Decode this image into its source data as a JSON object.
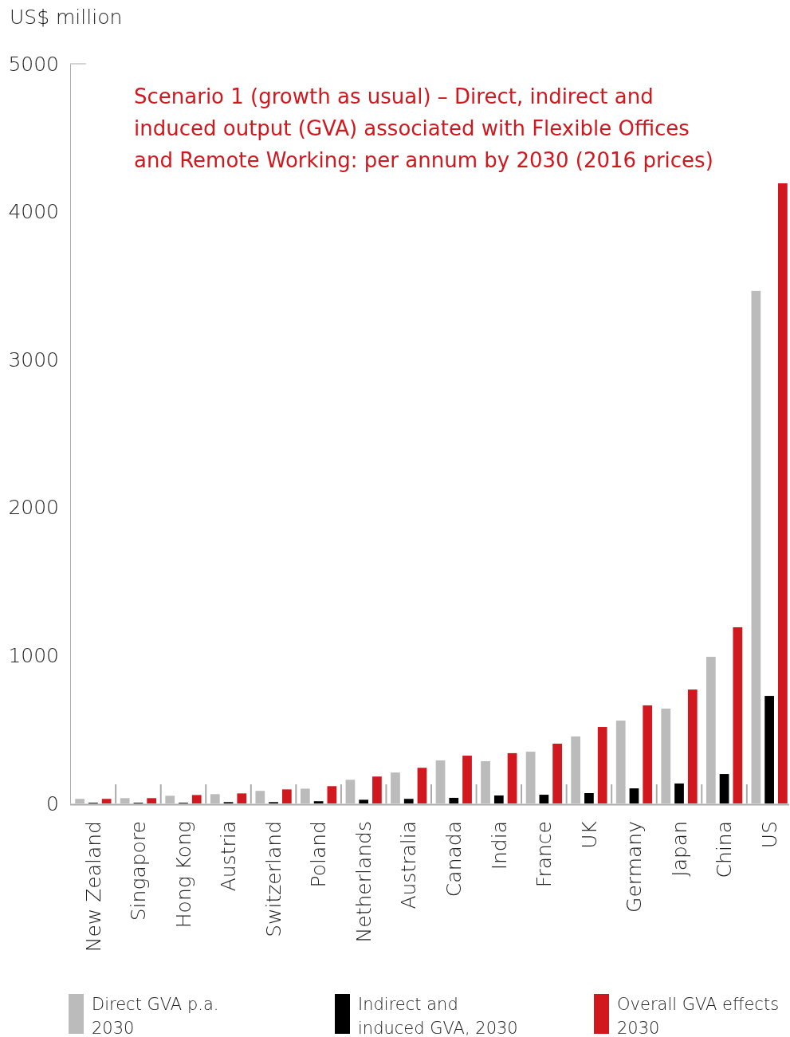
{
  "chart_data": {
    "type": "bar",
    "title": "Scenario 1 (growth as usual) – Direct, indirect and induced output (GVA) associated with Flexible Offices and Remote Working: per annum by 2030 (2016 prices)",
    "ylabel": "US$ million",
    "categories": [
      "New Zealand",
      "Singapore",
      "Hong Kong",
      "Austria",
      "Switzerland",
      "Poland",
      "Netherlands",
      "Australia",
      "Canada",
      "India",
      "France",
      "UK",
      "Germany",
      "Japan",
      "China",
      "US"
    ],
    "series": [
      {
        "name": "Direct GVA p.a. 2030",
        "color": "#bbbbbb",
        "values": [
          31,
          36,
          52,
          63,
          85,
          100,
          160,
          209,
          291,
          286,
          350,
          453,
          560,
          641,
          991,
          3465
        ]
      },
      {
        "name": "Indirect and induced GVA, 2030",
        "color": "#000000",
        "values": [
          5,
          5,
          5,
          9,
          9,
          15,
          25,
          31,
          38,
          54,
          59,
          70,
          102,
          135,
          199,
          727
        ]
      },
      {
        "name": "Overall GVA effects 2030",
        "color": "#d0181e",
        "values": [
          31,
          36,
          57,
          68,
          95,
          117,
          182,
          241,
          323,
          340,
          404,
          517,
          663,
          770,
          1191,
          4192
        ]
      }
    ],
    "ylim": [
      0,
      5000
    ],
    "yticks": [
      0,
      1000,
      2000,
      3000,
      4000,
      5000
    ],
    "grid": false,
    "legend": "bottom"
  }
}
